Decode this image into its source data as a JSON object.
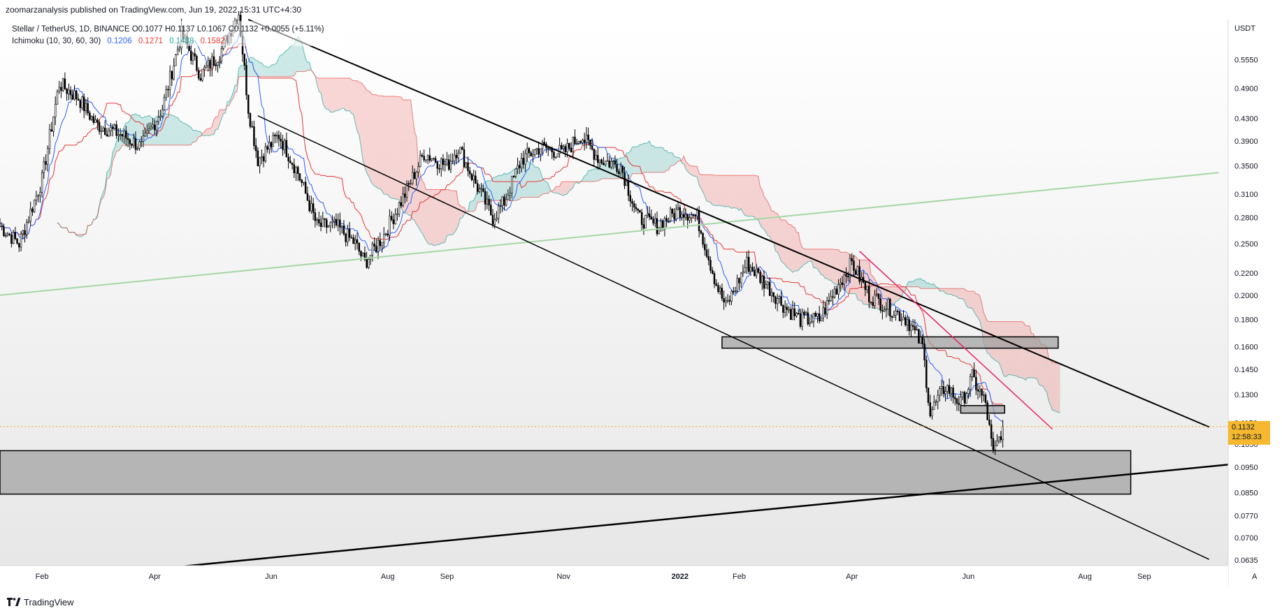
{
  "publisher": {
    "text": "zoomarzanalysis published on TradingView.com, Jun 19, 2022 15:31 UTC+4:30"
  },
  "legend": {
    "symbol_line": "Stellar / TetherUS, 1D, BINANCE  O0.1077  H0.1137  L0.1067  C0.1132  +0.0055 (+5.11%)",
    "ichimoku_label": "Ichimoku (10, 30, 60, 30)",
    "ichimoku_values": [
      {
        "value": "0.1206",
        "color": "#2962ff"
      },
      {
        "value": "0.1271",
        "color": "#e53935"
      },
      {
        "value": "0.1438",
        "color": "#26a69a"
      },
      {
        "value": "0.1582",
        "color": "#e53935"
      }
    ]
  },
  "branding": {
    "label": "TradingView"
  },
  "chart_data": {
    "type": "candlestick",
    "symbol": "Stellar / TetherUS",
    "timeframe": "1D",
    "exchange": "BINANCE",
    "currency_label": "USDT",
    "scale": "log",
    "ylim": [
      0.062,
      0.66
    ],
    "y_ticks": [
      "0.5550",
      "0.4900",
      "0.4300",
      "0.3900",
      "0.3500",
      "0.3100",
      "0.2800",
      "0.2500",
      "0.2200",
      "0.2000",
      "0.1800",
      "0.1600",
      "0.1450",
      "0.1300",
      "0.1150",
      "0.1050",
      "0.0950",
      "0.0850",
      "0.0770",
      "0.0700",
      "0.0635"
    ],
    "x_ticks": [
      {
        "label": "Feb",
        "date": "2021-02-01"
      },
      {
        "label": "Apr",
        "date": "2021-04-01"
      },
      {
        "label": "Jun",
        "date": "2021-06-01"
      },
      {
        "label": "Aug",
        "date": "2021-08-01"
      },
      {
        "label": "Sep",
        "date": "2021-09-01"
      },
      {
        "label": "Nov",
        "date": "2021-11-01"
      },
      {
        "label": "2022",
        "date": "2022-01-01",
        "bold": true
      },
      {
        "label": "Feb",
        "date": "2022-02-01"
      },
      {
        "label": "Apr",
        "date": "2022-04-01"
      },
      {
        "label": "Jun",
        "date": "2022-06-01"
      },
      {
        "label": "Aug",
        "date": "2022-08-01"
      },
      {
        "label": "Sep",
        "date": "2022-09-01"
      }
    ],
    "x_range": [
      "2021-01-10",
      "2022-10-15"
    ],
    "last_price": {
      "value": "0.1132",
      "countdown": "12:58:33"
    },
    "price_path": [
      [
        "2021-01-10",
        0.27
      ],
      [
        "2021-01-20",
        0.25
      ],
      [
        "2021-02-01",
        0.33
      ],
      [
        "2021-02-10",
        0.5
      ],
      [
        "2021-02-20",
        0.47
      ],
      [
        "2021-03-01",
        0.42
      ],
      [
        "2021-03-15",
        0.4
      ],
      [
        "2021-03-25",
        0.38
      ],
      [
        "2021-04-05",
        0.45
      ],
      [
        "2021-04-15",
        0.62
      ],
      [
        "2021-04-25",
        0.52
      ],
      [
        "2021-05-05",
        0.57
      ],
      [
        "2021-05-15",
        0.68
      ],
      [
        "2021-05-20",
        0.45
      ],
      [
        "2021-05-25",
        0.36
      ],
      [
        "2021-06-05",
        0.4
      ],
      [
        "2021-06-15",
        0.34
      ],
      [
        "2021-06-25",
        0.27
      ],
      [
        "2021-07-05",
        0.27
      ],
      [
        "2021-07-15",
        0.25
      ],
      [
        "2021-07-20",
        0.23
      ],
      [
        "2021-07-30",
        0.26
      ],
      [
        "2021-08-10",
        0.31
      ],
      [
        "2021-08-20",
        0.37
      ],
      [
        "2021-09-01",
        0.35
      ],
      [
        "2021-09-07",
        0.38
      ],
      [
        "2021-09-15",
        0.33
      ],
      [
        "2021-09-25",
        0.28
      ],
      [
        "2021-10-01",
        0.3
      ],
      [
        "2021-10-10",
        0.36
      ],
      [
        "2021-10-20",
        0.38
      ],
      [
        "2021-11-01",
        0.37
      ],
      [
        "2021-11-10",
        0.4
      ],
      [
        "2021-11-20",
        0.36
      ],
      [
        "2021-12-01",
        0.35
      ],
      [
        "2021-12-10",
        0.28
      ],
      [
        "2021-12-20",
        0.27
      ],
      [
        "2022-01-01",
        0.29
      ],
      [
        "2022-01-10",
        0.28
      ],
      [
        "2022-01-20",
        0.21
      ],
      [
        "2022-01-25",
        0.19
      ],
      [
        "2022-02-05",
        0.23
      ],
      [
        "2022-02-15",
        0.21
      ],
      [
        "2022-02-25",
        0.19
      ],
      [
        "2022-03-05",
        0.18
      ],
      [
        "2022-03-15",
        0.18
      ],
      [
        "2022-03-25",
        0.21
      ],
      [
        "2022-04-01",
        0.23
      ],
      [
        "2022-04-10",
        0.2
      ],
      [
        "2022-04-20",
        0.19
      ],
      [
        "2022-04-30",
        0.18
      ],
      [
        "2022-05-08",
        0.16
      ],
      [
        "2022-05-12",
        0.12
      ],
      [
        "2022-05-20",
        0.135
      ],
      [
        "2022-05-28",
        0.125
      ],
      [
        "2022-06-03",
        0.14
      ],
      [
        "2022-06-10",
        0.125
      ],
      [
        "2022-06-14",
        0.1
      ],
      [
        "2022-06-19",
        0.1132
      ]
    ],
    "ichimoku": {
      "params": [
        10,
        30,
        60,
        30
      ],
      "colors": {
        "conversion": "#2962ff",
        "base": "#e53935",
        "span_a": "#26a69a",
        "span_b": "#e53935"
      }
    }
  },
  "annotations": {
    "colors": {
      "trendline": "#000000",
      "long_support": "#a5d6a7",
      "magenta": "#e91e63",
      "zone_fill": "#9e9e9e"
    }
  }
}
